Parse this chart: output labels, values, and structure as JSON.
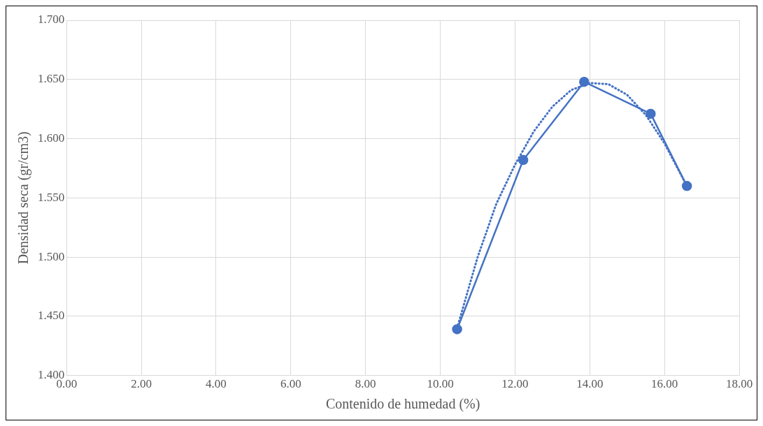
{
  "chart_data": {
    "type": "line",
    "xlabel": "Contenido de humedad (%)",
    "ylabel": "Densidad seca (gr/cm3)",
    "xlim": [
      0,
      18
    ],
    "ylim": [
      1.4,
      1.7
    ],
    "xticks": [
      {
        "value": 0,
        "label": "0.00"
      },
      {
        "value": 2,
        "label": "2.00"
      },
      {
        "value": 4,
        "label": "4.00"
      },
      {
        "value": 6,
        "label": "6.00"
      },
      {
        "value": 8,
        "label": "8.00"
      },
      {
        "value": 10,
        "label": "10.00"
      },
      {
        "value": 12,
        "label": "12.00"
      },
      {
        "value": 14,
        "label": "14.00"
      },
      {
        "value": 16,
        "label": "16.00"
      },
      {
        "value": 18,
        "label": "18.00"
      }
    ],
    "yticks": [
      {
        "value": 1.4,
        "label": "1.400"
      },
      {
        "value": 1.45,
        "label": "1.450"
      },
      {
        "value": 1.5,
        "label": "1.500"
      },
      {
        "value": 1.55,
        "label": "1.550"
      },
      {
        "value": 1.6,
        "label": "1.600"
      },
      {
        "value": 1.65,
        "label": "1.650"
      },
      {
        "value": 1.7,
        "label": "1.700"
      }
    ],
    "grid": true,
    "series": [
      {
        "color": "#4472c4",
        "marker": "circle",
        "line_style": "solid",
        "x": [
          10.45,
          12.22,
          13.85,
          15.63,
          16.6
        ],
        "values": [
          1.439,
          1.582,
          1.648,
          1.621,
          1.56
        ]
      },
      {
        "color": "#4472c4",
        "marker": "none",
        "line_style": "dotted",
        "x": [
          10.45,
          11,
          11.5,
          12,
          12.5,
          13,
          13.5,
          14,
          14.5,
          15,
          15.5,
          16,
          16.6
        ],
        "values": [
          1.44,
          1.5,
          1.545,
          1.578,
          1.606,
          1.627,
          1.641,
          1.647,
          1.646,
          1.637,
          1.62,
          1.596,
          1.56
        ]
      }
    ]
  }
}
